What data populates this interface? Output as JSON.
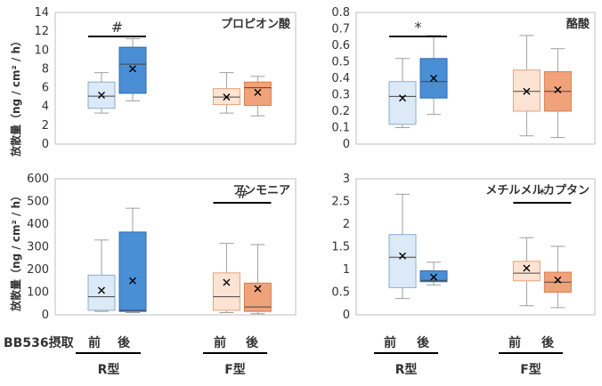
{
  "ylabel": "放散量（ng / cm² / h）",
  "groups": {
    "label": "BB536摂取",
    "before": "前",
    "after": "後",
    "r_type": "R型",
    "f_type": "F型"
  },
  "colors": {
    "r_before_fill": "#dce9f6",
    "r_before_stroke": "#8aaed3",
    "r_after_fill": "#4a8fd6",
    "r_after_stroke": "#2b6bb5",
    "f_before_fill": "#fde3d3",
    "f_before_stroke": "#e6a27c",
    "f_after_fill": "#f0a27a",
    "f_after_stroke": "#d97f52",
    "whisker": "#9e9e9e",
    "frame": "#bfbfbf",
    "mark": "#000000"
  },
  "chart_data": [
    {
      "type": "box",
      "title": "プロピオン酸",
      "ylim": [
        0,
        14
      ],
      "yticks": [
        "0",
        "2",
        "4",
        "6",
        "8",
        "10",
        "12",
        "14"
      ],
      "significance": "#",
      "significance_pair": "R型",
      "boxes": [
        {
          "name": "R型 前",
          "min": 3.3,
          "q1": 3.8,
          "median": 5.1,
          "q3": 6.6,
          "max": 7.6,
          "mean": 5.2
        },
        {
          "name": "R型 後",
          "min": 4.6,
          "q1": 5.4,
          "median": 8.5,
          "q3": 10.3,
          "max": 11.2,
          "mean": 8.0
        },
        {
          "name": "F型 前",
          "min": 3.3,
          "q1": 4.2,
          "median": 5.0,
          "q3": 5.9,
          "max": 7.6,
          "mean": 5.0
        },
        {
          "name": "F型 後",
          "min": 3.0,
          "q1": 4.1,
          "median": 6.0,
          "q3": 6.6,
          "max": 7.2,
          "mean": 5.5
        }
      ]
    },
    {
      "type": "box",
      "title": "酪酸",
      "ylim": [
        0,
        0.8
      ],
      "yticks": [
        "0",
        "0.1",
        "0.2",
        "0.3",
        "0.4",
        "0.5",
        "0.6",
        "0.7",
        "0.8"
      ],
      "significance": "*",
      "significance_pair": "R型",
      "boxes": [
        {
          "name": "R型 前",
          "min": 0.1,
          "q1": 0.12,
          "median": 0.29,
          "q3": 0.38,
          "max": 0.52,
          "mean": 0.28
        },
        {
          "name": "R型 後",
          "min": 0.18,
          "q1": 0.28,
          "median": 0.38,
          "q3": 0.52,
          "max": 0.66,
          "mean": 0.4
        },
        {
          "name": "F型 前",
          "min": 0.05,
          "q1": 0.2,
          "median": 0.32,
          "q3": 0.45,
          "max": 0.66,
          "mean": 0.32
        },
        {
          "name": "F型 後",
          "min": 0.04,
          "q1": 0.2,
          "median": 0.32,
          "q3": 0.44,
          "max": 0.58,
          "mean": 0.33
        }
      ]
    },
    {
      "type": "box",
      "title": "アンモニア",
      "ylim": [
        0,
        600
      ],
      "yticks": [
        "0",
        "100",
        "200",
        "300",
        "400",
        "500",
        "600"
      ],
      "significance": "#",
      "significance_pair": "F型",
      "boxes": [
        {
          "name": "R型 前",
          "min": 15,
          "q1": 20,
          "median": 80,
          "q3": 175,
          "max": 330,
          "mean": 108
        },
        {
          "name": "R型 後",
          "min": 10,
          "q1": 15,
          "median": 20,
          "q3": 365,
          "max": 470,
          "mean": 150
        },
        {
          "name": "F型 前",
          "min": 10,
          "q1": 20,
          "median": 80,
          "q3": 185,
          "max": 315,
          "mean": 143
        },
        {
          "name": "F型 後",
          "min": 5,
          "q1": 15,
          "median": 35,
          "q3": 140,
          "max": 310,
          "mean": 115
        }
      ]
    },
    {
      "type": "box",
      "title": "メチルメルカプタン",
      "ylim": [
        0,
        3
      ],
      "yticks": [
        "0",
        "0.5",
        "1",
        "1.5",
        "2",
        "2.5",
        "3"
      ],
      "significance": "*",
      "significance_pair": "F型",
      "boxes": [
        {
          "name": "R型 前",
          "min": 0.36,
          "q1": 0.6,
          "median": 1.27,
          "q3": 1.77,
          "max": 2.66,
          "mean": 1.3
        },
        {
          "name": "R型 後",
          "min": 0.66,
          "q1": 0.73,
          "median": 0.76,
          "q3": 0.97,
          "max": 1.16,
          "mean": 0.83
        },
        {
          "name": "F型 前",
          "min": 0.2,
          "q1": 0.75,
          "median": 0.92,
          "q3": 1.18,
          "max": 1.7,
          "mean": 1.03
        },
        {
          "name": "F型 後",
          "min": 0.16,
          "q1": 0.5,
          "median": 0.72,
          "q3": 0.94,
          "max": 1.51,
          "mean": 0.77
        }
      ]
    }
  ]
}
